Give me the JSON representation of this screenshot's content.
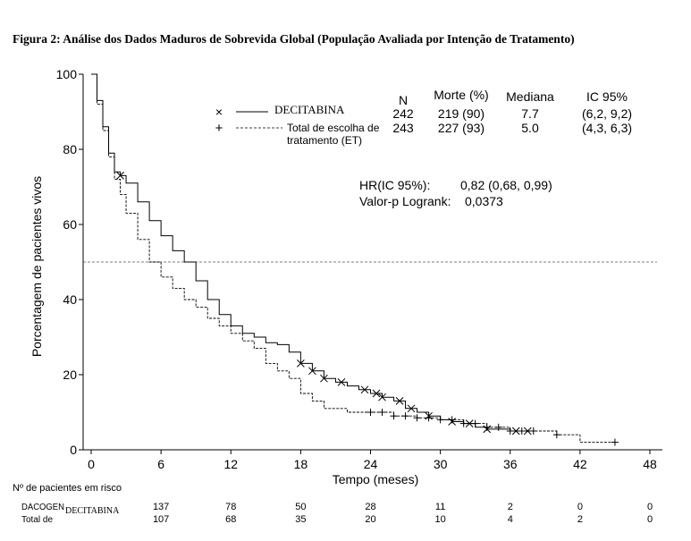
{
  "title": "Figura 2: Análise dos Dados Maduros de Sobrevida Global (População Avaliada por Intenção de Tratamento)",
  "chart_data": {
    "type": "line",
    "xlabel": "Tempo (meses)",
    "ylabel": "Porcentagem de pacientes vivos",
    "xlim": [
      0,
      48
    ],
    "ylim": [
      0,
      100
    ],
    "xticks": [
      "0",
      "6",
      "12",
      "18",
      "24",
      "30",
      "36",
      "42",
      "48"
    ],
    "yticks": [
      "0",
      "20",
      "40",
      "60",
      "80",
      "100"
    ],
    "reference_line_y": 50,
    "legend": {
      "headers": {
        "n": "N",
        "deaths": "Morte (%)",
        "median": "Mediana",
        "ci": "IC 95%"
      },
      "rows": [
        {
          "name": "DECITABINA",
          "marker": "×",
          "n": "242",
          "deaths": "219 (90)",
          "median": "7.7",
          "ci": "(6,2, 9,2)",
          "line": "solid"
        },
        {
          "name_line1": "Total de escolha de",
          "name_line2": "tratamento (ET)",
          "marker": "+",
          "n": "243",
          "deaths": "227 (93)",
          "median": "5.0",
          "ci": "(4,3, 6,3)",
          "line": "dashed"
        }
      ]
    },
    "stats": {
      "hr_label": "HR(IC 95%):",
      "hr_value": "0,82 (0,68, 0,99)",
      "p_label": "Valor-p Logrank:",
      "p_value": "0,0373"
    },
    "series": [
      {
        "name": "DECITABINA",
        "x": [
          0,
          0.5,
          1,
          1.5,
          2,
          2.5,
          3,
          4,
          5,
          6,
          7,
          8,
          9,
          10,
          11,
          12,
          13,
          14,
          15,
          16,
          17,
          18,
          19,
          20,
          21,
          22,
          23,
          24,
          25,
          26,
          27,
          28,
          29,
          30,
          31,
          32,
          33,
          34,
          35,
          36,
          37,
          38
        ],
        "y": [
          100,
          93,
          86,
          79,
          74,
          73,
          71,
          66,
          61,
          57,
          53,
          50,
          45,
          40,
          36,
          33,
          31,
          30,
          28.5,
          28,
          26,
          23,
          21,
          19,
          18,
          17,
          16,
          15,
          14,
          13,
          11,
          10,
          9,
          8,
          7.5,
          7,
          6,
          5.5,
          5.5,
          5,
          5,
          5
        ]
      },
      {
        "name": "Total de escolha de tratamento (ET)",
        "x": [
          0,
          0.5,
          1,
          1.5,
          2,
          2.5,
          3,
          4,
          5,
          6,
          7,
          8,
          9,
          10,
          11,
          12,
          13,
          14,
          15,
          16,
          17,
          18,
          19,
          20,
          22,
          24,
          26,
          28,
          30,
          32,
          34,
          36,
          38,
          40,
          42,
          45
        ],
        "y": [
          100,
          92,
          85,
          78,
          72,
          68,
          63,
          56,
          50,
          46,
          43,
          40,
          38,
          35,
          33,
          31,
          29,
          27,
          23,
          21,
          19,
          15,
          13,
          11,
          10,
          10,
          9,
          8.5,
          8,
          7,
          6,
          5,
          5,
          4,
          2,
          2
        ]
      }
    ],
    "censor_marks": [
      {
        "series": 0,
        "x": [
          2.5,
          18,
          19,
          20,
          21.5,
          23.5,
          24.5,
          25,
          26.5,
          27.5,
          29,
          31,
          32.5,
          34,
          36.5,
          37.5
        ]
      },
      {
        "series": 1,
        "x": [
          24,
          25,
          26,
          27,
          28,
          29,
          30,
          31,
          32,
          33,
          34,
          35,
          36,
          37,
          38,
          40,
          45
        ]
      }
    ],
    "risk_table": {
      "header": "Nº de pacientes em risco",
      "rows": [
        {
          "prefix": "DACOGEN",
          "overlay": "DECITABINA",
          "values": [
            "137",
            "78",
            "50",
            "28",
            "11",
            "2",
            "0",
            "0"
          ]
        },
        {
          "prefix": "Total de",
          "overlay": "",
          "values": [
            "107",
            "68",
            "35",
            "20",
            "10",
            "4",
            "2",
            "0"
          ]
        }
      ]
    }
  }
}
